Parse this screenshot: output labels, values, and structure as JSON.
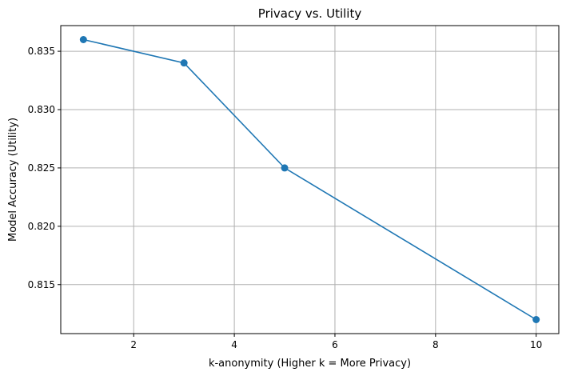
{
  "chart_data": {
    "type": "line",
    "title": "Privacy vs. Utility",
    "xlabel": "k-anonymity (Higher k = More Privacy)",
    "ylabel": "Model Accuracy (Utility)",
    "x": [
      1,
      3,
      5,
      10
    ],
    "series": [
      {
        "values": [
          0.836,
          0.834,
          0.825,
          0.812
        ],
        "color": "#1f77b4",
        "marker": "circle"
      }
    ],
    "xlim": [
      0.55,
      10.45
    ],
    "ylim": [
      0.8108,
      0.8372
    ],
    "xticks": [
      2,
      4,
      6,
      8,
      10
    ],
    "xtick_labels": [
      "2",
      "4",
      "6",
      "8",
      "10"
    ],
    "yticks": [
      0.815,
      0.82,
      0.825,
      0.83,
      0.835
    ],
    "ytick_labels": [
      "0.815",
      "0.820",
      "0.825",
      "0.830",
      "0.835"
    ],
    "grid": true,
    "grid_color": "#b0b0b0"
  }
}
